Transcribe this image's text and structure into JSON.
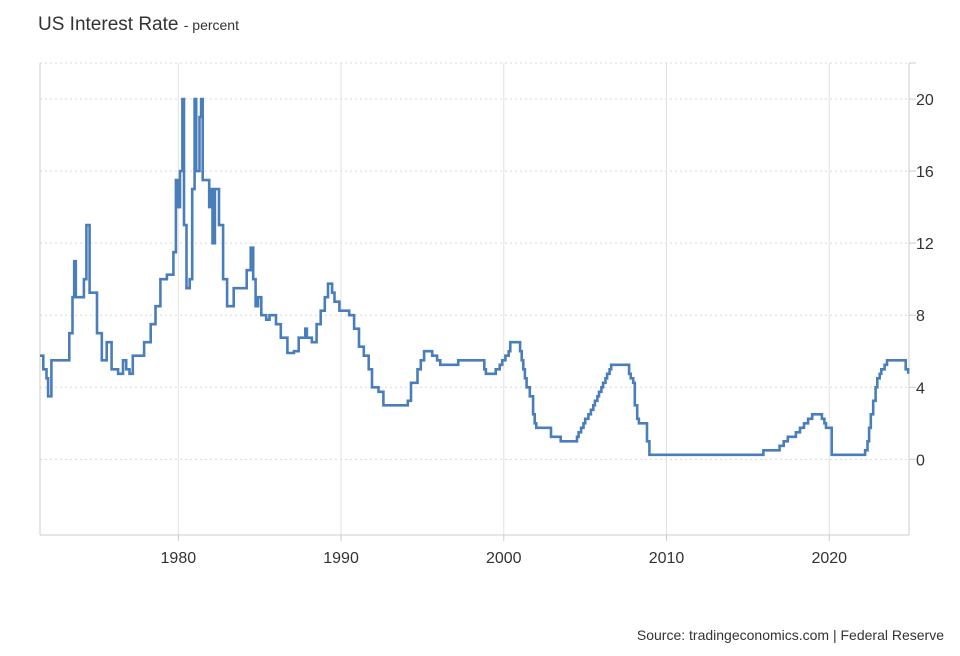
{
  "chart_data": {
    "type": "line",
    "title": "US Interest Rate",
    "subtitle": "- percent",
    "xlabel": "",
    "ylabel": "",
    "xlim": [
      1971.5,
      2024.9
    ],
    "ylim": [
      -4.2,
      22
    ],
    "x_ticks": [
      1980,
      1990,
      2000,
      2010,
      2020
    ],
    "y_ticks": [
      0,
      4,
      8,
      12,
      16,
      20
    ],
    "grid": true,
    "line_color": "#4a7ebb",
    "series": [
      {
        "name": "",
        "step": true,
        "points": [
          [
            1971.5,
            5.75
          ],
          [
            1971.7,
            5.0
          ],
          [
            1971.9,
            4.5
          ],
          [
            1972.0,
            3.5
          ],
          [
            1972.2,
            5.5
          ],
          [
            1973.1,
            5.5
          ],
          [
            1973.3,
            7.0
          ],
          [
            1973.5,
            9.0
          ],
          [
            1973.6,
            11.0
          ],
          [
            1973.7,
            9.0
          ],
          [
            1974.2,
            10.0
          ],
          [
            1974.35,
            13.0
          ],
          [
            1974.55,
            9.25
          ],
          [
            1975.0,
            7.0
          ],
          [
            1975.3,
            5.5
          ],
          [
            1975.6,
            6.5
          ],
          [
            1975.9,
            5.0
          ],
          [
            1976.3,
            4.75
          ],
          [
            1976.6,
            5.5
          ],
          [
            1976.8,
            5.0
          ],
          [
            1977.0,
            4.75
          ],
          [
            1977.2,
            5.75
          ],
          [
            1977.9,
            6.5
          ],
          [
            1978.3,
            7.5
          ],
          [
            1978.6,
            8.5
          ],
          [
            1978.9,
            10.0
          ],
          [
            1979.3,
            10.25
          ],
          [
            1979.7,
            11.5
          ],
          [
            1979.85,
            15.5
          ],
          [
            1980.0,
            14.0
          ],
          [
            1980.1,
            16.0
          ],
          [
            1980.25,
            20.0
          ],
          [
            1980.35,
            13.0
          ],
          [
            1980.5,
            9.5
          ],
          [
            1980.7,
            10.0
          ],
          [
            1980.85,
            15.0
          ],
          [
            1981.0,
            20.0
          ],
          [
            1981.1,
            16.0
          ],
          [
            1981.3,
            19.0
          ],
          [
            1981.4,
            20.0
          ],
          [
            1981.5,
            15.5
          ],
          [
            1981.9,
            14.0
          ],
          [
            1982.0,
            15.0
          ],
          [
            1982.1,
            12.0
          ],
          [
            1982.25,
            15.0
          ],
          [
            1982.5,
            13.0
          ],
          [
            1982.75,
            10.0
          ],
          [
            1983.0,
            8.5
          ],
          [
            1983.4,
            9.5
          ],
          [
            1984.2,
            10.5
          ],
          [
            1984.45,
            11.75
          ],
          [
            1984.6,
            10.0
          ],
          [
            1984.75,
            8.5
          ],
          [
            1984.9,
            9.0
          ],
          [
            1985.1,
            8.0
          ],
          [
            1985.4,
            7.75
          ],
          [
            1985.6,
            8.0
          ],
          [
            1986.0,
            7.5
          ],
          [
            1986.3,
            6.75
          ],
          [
            1986.7,
            5.9
          ],
          [
            1987.1,
            6.0
          ],
          [
            1987.4,
            6.75
          ],
          [
            1987.8,
            7.25
          ],
          [
            1987.9,
            6.75
          ],
          [
            1988.2,
            6.5
          ],
          [
            1988.5,
            7.5
          ],
          [
            1988.75,
            8.25
          ],
          [
            1989.0,
            9.0
          ],
          [
            1989.2,
            9.75
          ],
          [
            1989.45,
            9.25
          ],
          [
            1989.6,
            8.75
          ],
          [
            1989.9,
            8.25
          ],
          [
            1990.5,
            8.0
          ],
          [
            1990.8,
            7.25
          ],
          [
            1991.1,
            6.25
          ],
          [
            1991.4,
            5.75
          ],
          [
            1991.7,
            5.0
          ],
          [
            1991.9,
            4.0
          ],
          [
            1992.3,
            3.75
          ],
          [
            1992.6,
            3.0
          ],
          [
            1994.1,
            3.25
          ],
          [
            1994.3,
            4.25
          ],
          [
            1994.7,
            5.0
          ],
          [
            1994.9,
            5.5
          ],
          [
            1995.1,
            6.0
          ],
          [
            1995.6,
            5.75
          ],
          [
            1995.9,
            5.5
          ],
          [
            1996.1,
            5.25
          ],
          [
            1997.2,
            5.5
          ],
          [
            1998.8,
            5.0
          ],
          [
            1998.9,
            4.75
          ],
          [
            1999.5,
            5.0
          ],
          [
            1999.75,
            5.25
          ],
          [
            1999.9,
            5.5
          ],
          [
            2000.1,
            5.75
          ],
          [
            2000.3,
            6.0
          ],
          [
            2000.4,
            6.5
          ],
          [
            2001.0,
            6.0
          ],
          [
            2001.1,
            5.5
          ],
          [
            2001.2,
            5.0
          ],
          [
            2001.3,
            4.5
          ],
          [
            2001.4,
            4.0
          ],
          [
            2001.6,
            3.5
          ],
          [
            2001.8,
            2.5
          ],
          [
            2001.9,
            2.0
          ],
          [
            2002.0,
            1.75
          ],
          [
            2002.9,
            1.25
          ],
          [
            2003.5,
            1.0
          ],
          [
            2004.5,
            1.25
          ],
          [
            2004.6,
            1.5
          ],
          [
            2004.75,
            1.75
          ],
          [
            2004.9,
            2.0
          ],
          [
            2005.0,
            2.25
          ],
          [
            2005.2,
            2.5
          ],
          [
            2005.35,
            2.75
          ],
          [
            2005.5,
            3.0
          ],
          [
            2005.6,
            3.25
          ],
          [
            2005.75,
            3.5
          ],
          [
            2005.85,
            3.75
          ],
          [
            2006.0,
            4.0
          ],
          [
            2006.1,
            4.25
          ],
          [
            2006.25,
            4.5
          ],
          [
            2006.35,
            4.75
          ],
          [
            2006.5,
            5.0
          ],
          [
            2006.6,
            5.25
          ],
          [
            2007.7,
            4.75
          ],
          [
            2007.8,
            4.5
          ],
          [
            2007.95,
            4.25
          ],
          [
            2008.05,
            3.0
          ],
          [
            2008.2,
            2.25
          ],
          [
            2008.3,
            2.0
          ],
          [
            2008.8,
            1.0
          ],
          [
            2008.95,
            0.25
          ],
          [
            2015.95,
            0.5
          ],
          [
            2016.95,
            0.75
          ],
          [
            2017.2,
            1.0
          ],
          [
            2017.45,
            1.25
          ],
          [
            2017.95,
            1.5
          ],
          [
            2018.2,
            1.75
          ],
          [
            2018.45,
            2.0
          ],
          [
            2018.7,
            2.25
          ],
          [
            2018.95,
            2.5
          ],
          [
            2019.55,
            2.25
          ],
          [
            2019.7,
            2.0
          ],
          [
            2019.8,
            1.75
          ],
          [
            2020.15,
            0.25
          ],
          [
            2022.2,
            0.5
          ],
          [
            2022.35,
            1.0
          ],
          [
            2022.45,
            1.75
          ],
          [
            2022.55,
            2.5
          ],
          [
            2022.7,
            3.25
          ],
          [
            2022.85,
            4.0
          ],
          [
            2022.95,
            4.5
          ],
          [
            2023.1,
            4.75
          ],
          [
            2023.2,
            5.0
          ],
          [
            2023.4,
            5.25
          ],
          [
            2023.55,
            5.5
          ],
          [
            2024.7,
            5.0
          ],
          [
            2024.85,
            4.75
          ]
        ]
      }
    ]
  },
  "source": "Source: tradingeconomics.com | Federal Reserve"
}
